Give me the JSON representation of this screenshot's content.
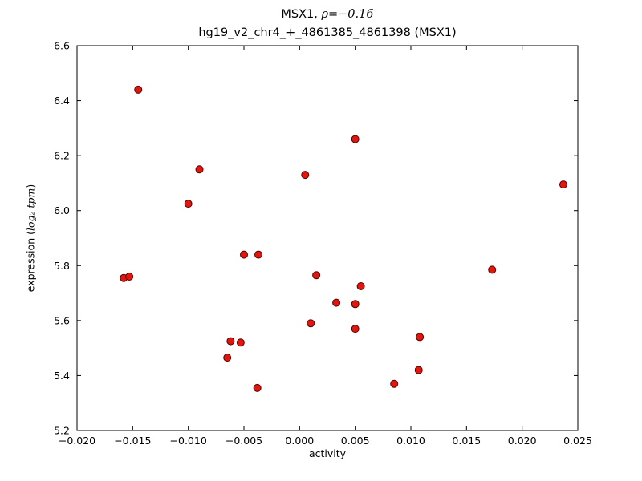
{
  "figure": {
    "title_prefix": "MSX1, ",
    "title_math": "ρ=−0.16",
    "subtitle": "hg19_v2_chr4_+_4861385_4861398 (MSX1)",
    "xlabel": "activity",
    "ylabel_prefix": "expression (",
    "ylabel_math": "log₂ tpm",
    "ylabel_suffix": ")"
  },
  "chart_data": {
    "type": "scatter",
    "title": "MSX1, ρ=−0.16",
    "subtitle": "hg19_v2_chr4_+_4861385_4861398 (MSX1)",
    "xlabel": "activity",
    "ylabel": "expression (log2 tpm)",
    "legend": "none",
    "grid": false,
    "xlim": [
      -0.02,
      0.025
    ],
    "ylim": [
      5.2,
      6.6
    ],
    "xticks": [
      -0.02,
      -0.015,
      -0.01,
      -0.005,
      0.0,
      0.005,
      0.01,
      0.015,
      0.02,
      0.025
    ],
    "xticklabels": [
      "−0.020",
      "−0.015",
      "−0.010",
      "−0.005",
      "0.000",
      "0.005",
      "0.010",
      "0.015",
      "0.020",
      "0.025"
    ],
    "yticks": [
      5.2,
      5.4,
      5.6,
      5.8,
      6.0,
      6.2,
      6.4,
      6.6
    ],
    "yticklabels": [
      "5.2",
      "5.4",
      "5.6",
      "5.8",
      "6.0",
      "6.2",
      "6.4",
      "6.6"
    ],
    "marker": {
      "shape": "circle",
      "fill": "#e3160d",
      "edge": "#550000",
      "radius": 4.5
    },
    "axis_color": "#000000",
    "points": [
      [
        -0.0145,
        6.44
      ],
      [
        -0.0158,
        5.755
      ],
      [
        -0.0153,
        5.76
      ],
      [
        -0.01,
        6.025
      ],
      [
        -0.009,
        6.15
      ],
      [
        -0.0065,
        5.465
      ],
      [
        -0.0062,
        5.525
      ],
      [
        -0.0053,
        5.52
      ],
      [
        -0.005,
        5.84
      ],
      [
        -0.0037,
        5.84
      ],
      [
        -0.0038,
        5.355
      ],
      [
        0.0005,
        6.13
      ],
      [
        0.001,
        5.59
      ],
      [
        0.0015,
        5.765
      ],
      [
        0.0033,
        5.665
      ],
      [
        0.005,
        6.26
      ],
      [
        0.005,
        5.66
      ],
      [
        0.005,
        5.57
      ],
      [
        0.0055,
        5.725
      ],
      [
        0.0085,
        5.37
      ],
      [
        0.0107,
        5.42
      ],
      [
        0.0108,
        5.54
      ],
      [
        0.0173,
        5.785
      ],
      [
        0.0237,
        6.095
      ]
    ]
  }
}
